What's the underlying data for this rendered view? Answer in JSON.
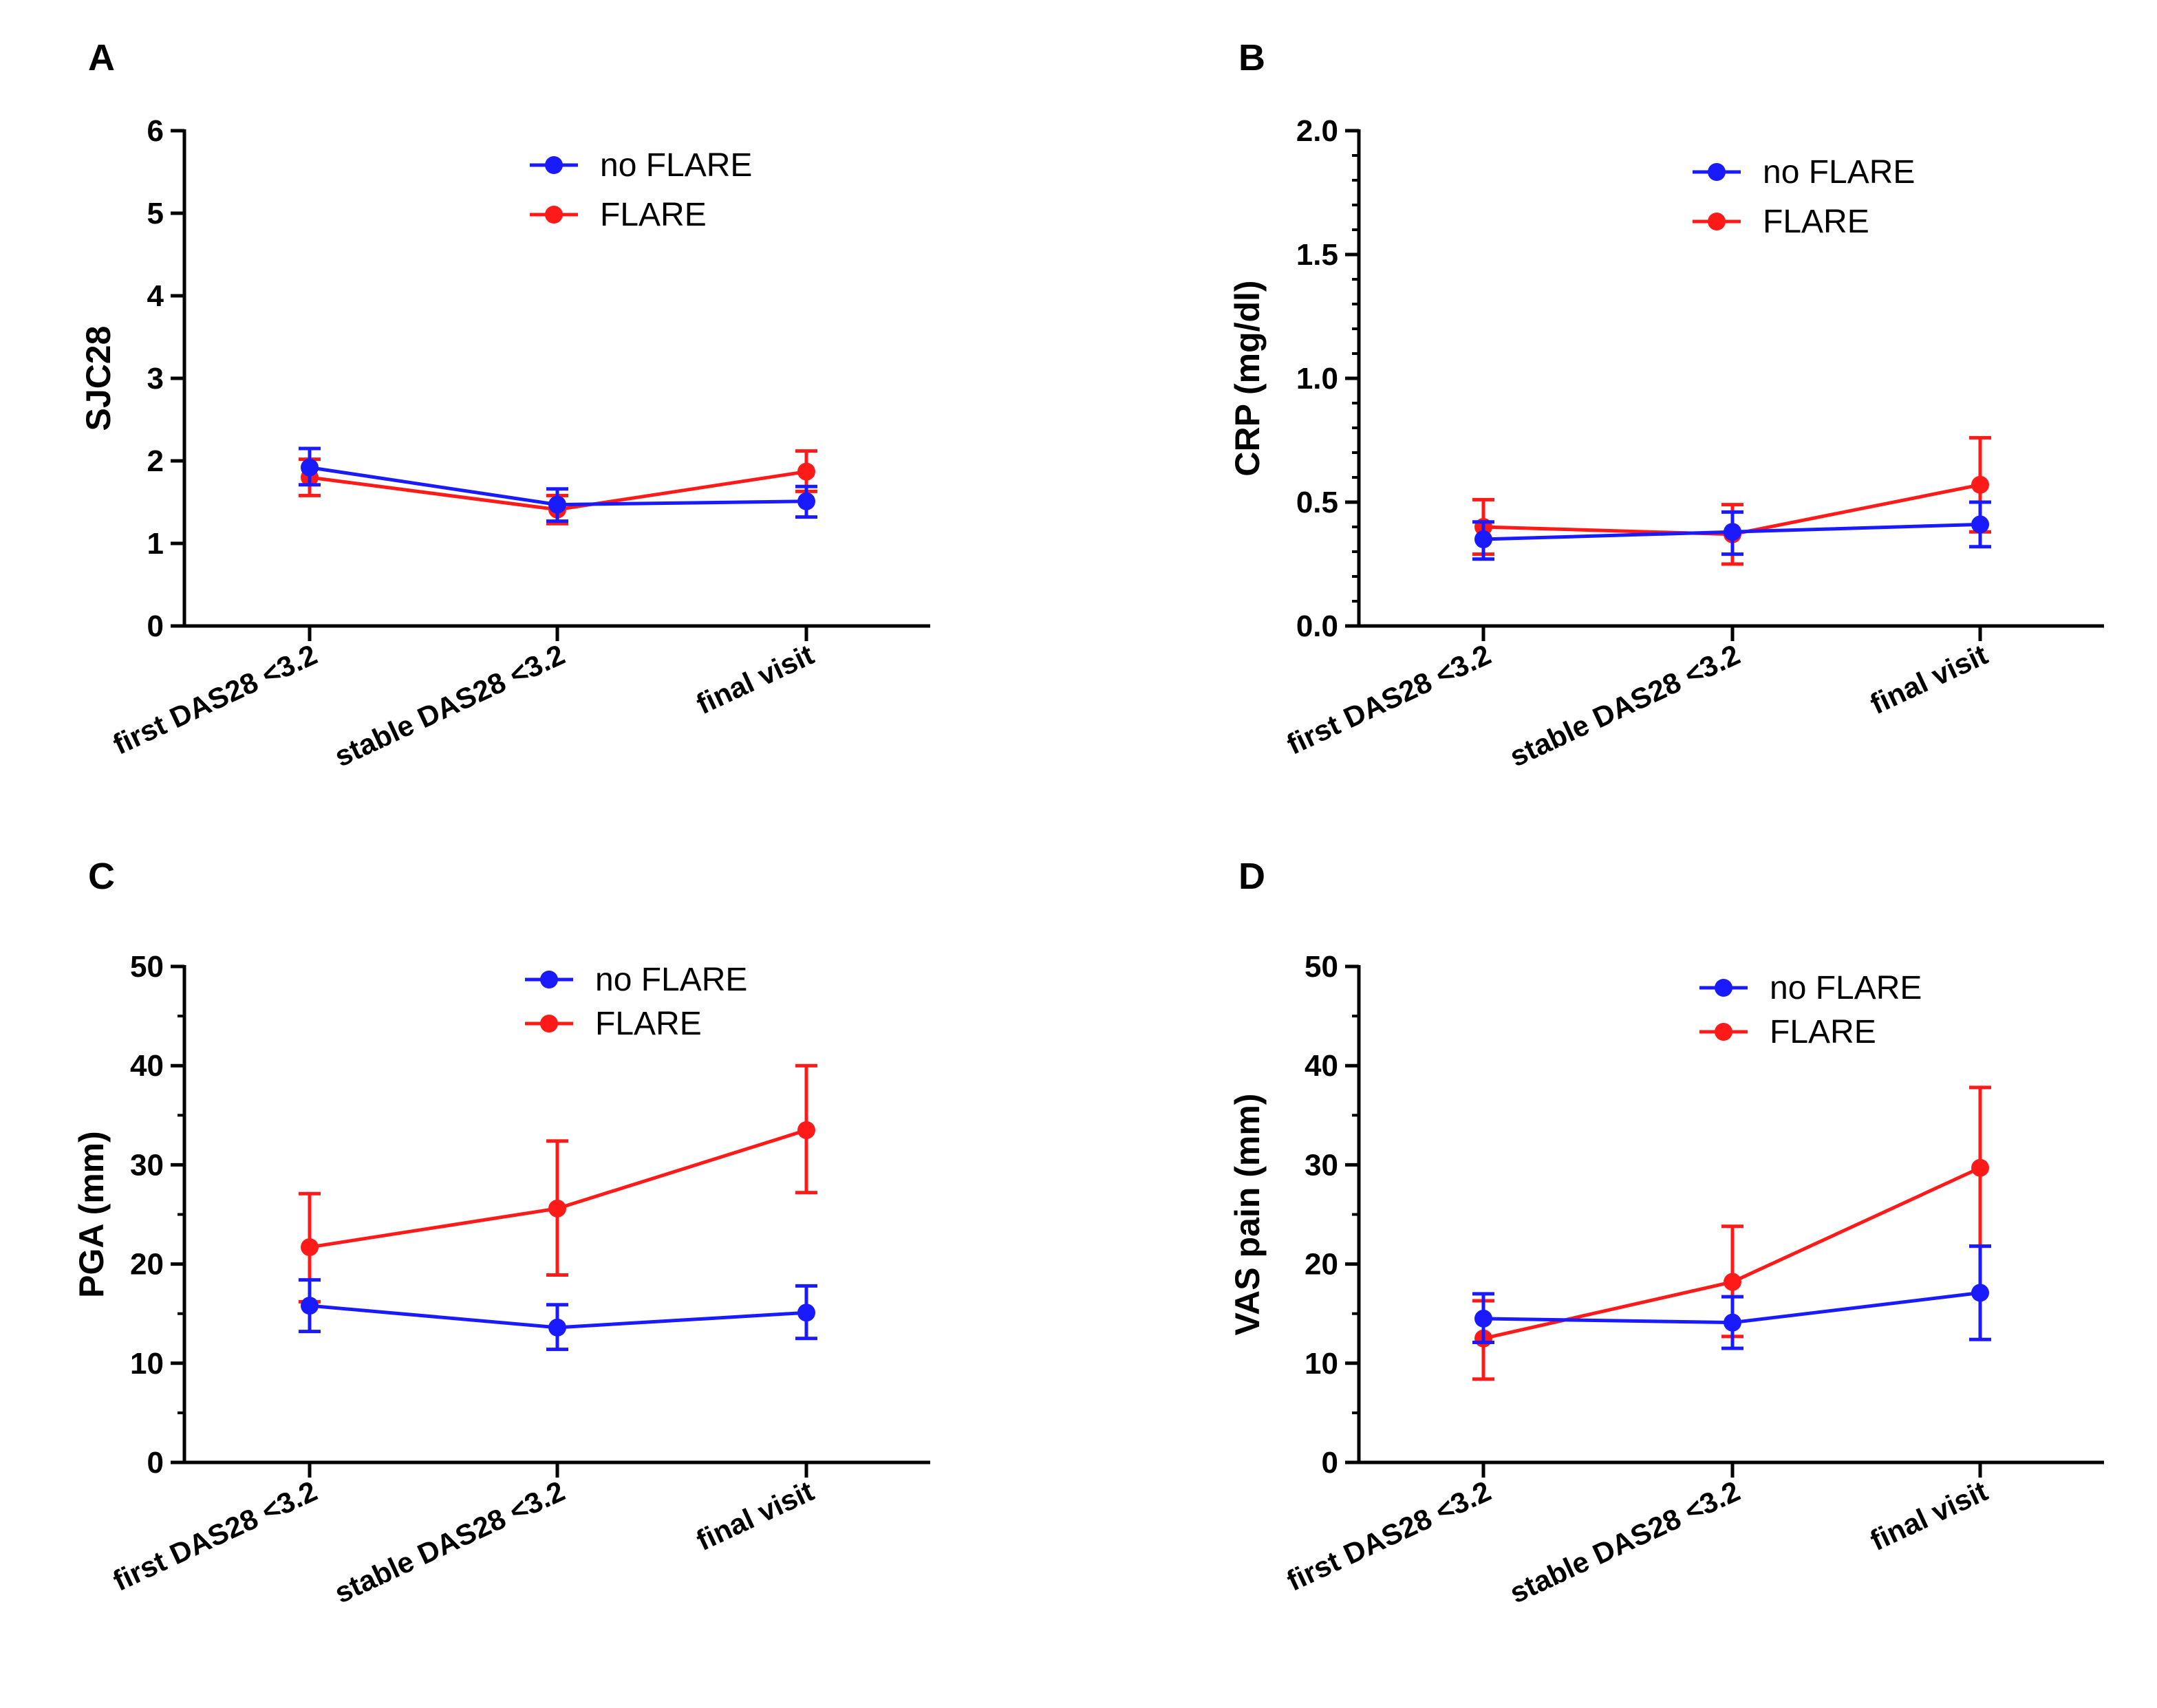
{
  "colors": {
    "no_flare": "#1a1aff",
    "flare": "#ff1a1a",
    "axis": "#000000"
  },
  "chart_data": [
    {
      "panel": "A",
      "type": "line",
      "categories": [
        "first DAS28 <3.2",
        "stable DAS28 <3.2",
        "final visit"
      ],
      "ylabel": "SJC28",
      "ylim": [
        0,
        6
      ],
      "yticks": [
        "0",
        "1",
        "2",
        "3",
        "4",
        "5",
        "6"
      ],
      "ytick_values": [
        0,
        1,
        2,
        3,
        4,
        5,
        6
      ],
      "minor_step": null,
      "legend": "top-right",
      "series": [
        {
          "name": "no FLARE",
          "values": [
            1.92,
            1.47,
            1.51
          ],
          "err_low": [
            1.71,
            1.27,
            1.32
          ],
          "err_high": [
            2.15,
            1.66,
            1.69
          ]
        },
        {
          "name": "FLARE",
          "values": [
            1.8,
            1.41,
            1.87
          ],
          "err_low": [
            1.58,
            1.24,
            1.63
          ],
          "err_high": [
            2.02,
            1.58,
            2.12
          ]
        }
      ]
    },
    {
      "panel": "B",
      "type": "line",
      "categories": [
        "first DAS28 <3.2",
        "stable DAS28 <3.2",
        "final visit"
      ],
      "ylabel": "CRP (mg/dl)",
      "ylim": [
        0,
        2
      ],
      "yticks": [
        "0.0",
        "0.5",
        "1.0",
        "1.5",
        "2.0"
      ],
      "ytick_values": [
        0,
        0.5,
        1.0,
        1.5,
        2.0
      ],
      "minor_step": 0.1,
      "legend": "top-right",
      "series": [
        {
          "name": "no FLARE",
          "values": [
            0.35,
            0.38,
            0.41
          ],
          "err_low": [
            0.27,
            0.29,
            0.32
          ],
          "err_high": [
            0.42,
            0.46,
            0.5
          ]
        },
        {
          "name": "FLARE",
          "values": [
            0.4,
            0.37,
            0.57
          ],
          "err_low": [
            0.29,
            0.25,
            0.38
          ],
          "err_high": [
            0.51,
            0.49,
            0.76
          ]
        }
      ]
    },
    {
      "panel": "C",
      "type": "line",
      "categories": [
        "first DAS28 <3.2",
        "stable DAS28 <3.2",
        "final visit"
      ],
      "ylabel": "PGA (mm)",
      "ylim": [
        0,
        50
      ],
      "yticks": [
        "0",
        "10",
        "20",
        "30",
        "40",
        "50"
      ],
      "ytick_values": [
        0,
        10,
        20,
        30,
        40,
        50
      ],
      "minor_step": 5,
      "legend": "top-right",
      "series": [
        {
          "name": "no FLARE",
          "values": [
            15.8,
            13.6,
            15.1
          ],
          "err_low": [
            13.2,
            11.4,
            12.5
          ],
          "err_high": [
            18.4,
            15.9,
            17.8
          ]
        },
        {
          "name": "FLARE",
          "values": [
            21.7,
            25.6,
            33.5
          ],
          "err_low": [
            16.2,
            18.9,
            27.2
          ],
          "err_high": [
            27.1,
            32.4,
            40.0
          ]
        }
      ]
    },
    {
      "panel": "D",
      "type": "line",
      "categories": [
        "first DAS28 <3.2",
        "stable DAS28 <3.2",
        "final visit"
      ],
      "ylabel": "VAS pain (mm)",
      "ylim": [
        0,
        50
      ],
      "yticks": [
        "0",
        "10",
        "20",
        "30",
        "40",
        "50"
      ],
      "ytick_values": [
        0,
        10,
        20,
        30,
        40,
        50
      ],
      "minor_step": 5,
      "legend": "top-right",
      "series": [
        {
          "name": "no FLARE",
          "values": [
            14.5,
            14.1,
            17.1
          ],
          "err_low": [
            12.1,
            11.5,
            12.4
          ],
          "err_high": [
            17.0,
            16.7,
            21.8
          ]
        },
        {
          "name": "FLARE",
          "values": [
            12.5,
            18.2,
            29.7
          ],
          "err_low": [
            8.4,
            12.7,
            21.8
          ],
          "err_high": [
            16.3,
            23.8,
            37.8
          ]
        }
      ]
    }
  ]
}
